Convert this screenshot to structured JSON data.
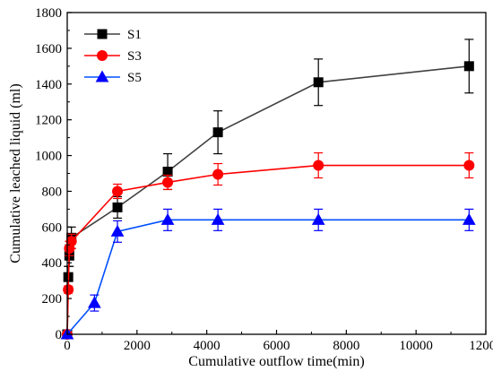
{
  "chart_data": {
    "type": "line",
    "title": "",
    "xlabel": "Cumulative outflow time(min)",
    "ylabel": "Cumulative leached liquid (ml)",
    "xlim": [
      0,
      12000
    ],
    "ylim": [
      0,
      1800
    ],
    "xticks": [
      0,
      2000,
      4000,
      6000,
      8000,
      10000,
      12000
    ],
    "yticks": [
      0,
      200,
      400,
      600,
      800,
      1000,
      1200,
      1400,
      1600,
      1800
    ],
    "grid": false,
    "legend_position": "top-left",
    "series": [
      {
        "name": "S1",
        "color": "#404040",
        "marker": "square",
        "marker_color": "#000000",
        "x": [
          0,
          30,
          60,
          120,
          1440,
          2880,
          4320,
          7200,
          11520
        ],
        "y": [
          0,
          320,
          440,
          540,
          710,
          910,
          1130,
          1410,
          1500
        ],
        "err": [
          0,
          60,
          60,
          60,
          60,
          100,
          120,
          130,
          150
        ]
      },
      {
        "name": "S3",
        "color": "#ff0000",
        "marker": "circle",
        "marker_color": "#ff0000",
        "x": [
          0,
          30,
          60,
          120,
          1440,
          2880,
          4320,
          7200,
          11520
        ],
        "y": [
          0,
          250,
          480,
          520,
          800,
          850,
          895,
          945,
          945
        ],
        "err": [
          0,
          20,
          40,
          40,
          40,
          40,
          60,
          70,
          70
        ]
      },
      {
        "name": "S5",
        "color": "#0050ff",
        "marker": "triangle",
        "marker_color": "#0000ff",
        "x": [
          0,
          780,
          1440,
          2880,
          4320,
          7200,
          11520
        ],
        "y": [
          0,
          175,
          575,
          640,
          640,
          640,
          640
        ],
        "err": [
          0,
          45,
          60,
          60,
          60,
          60,
          60
        ]
      }
    ]
  }
}
